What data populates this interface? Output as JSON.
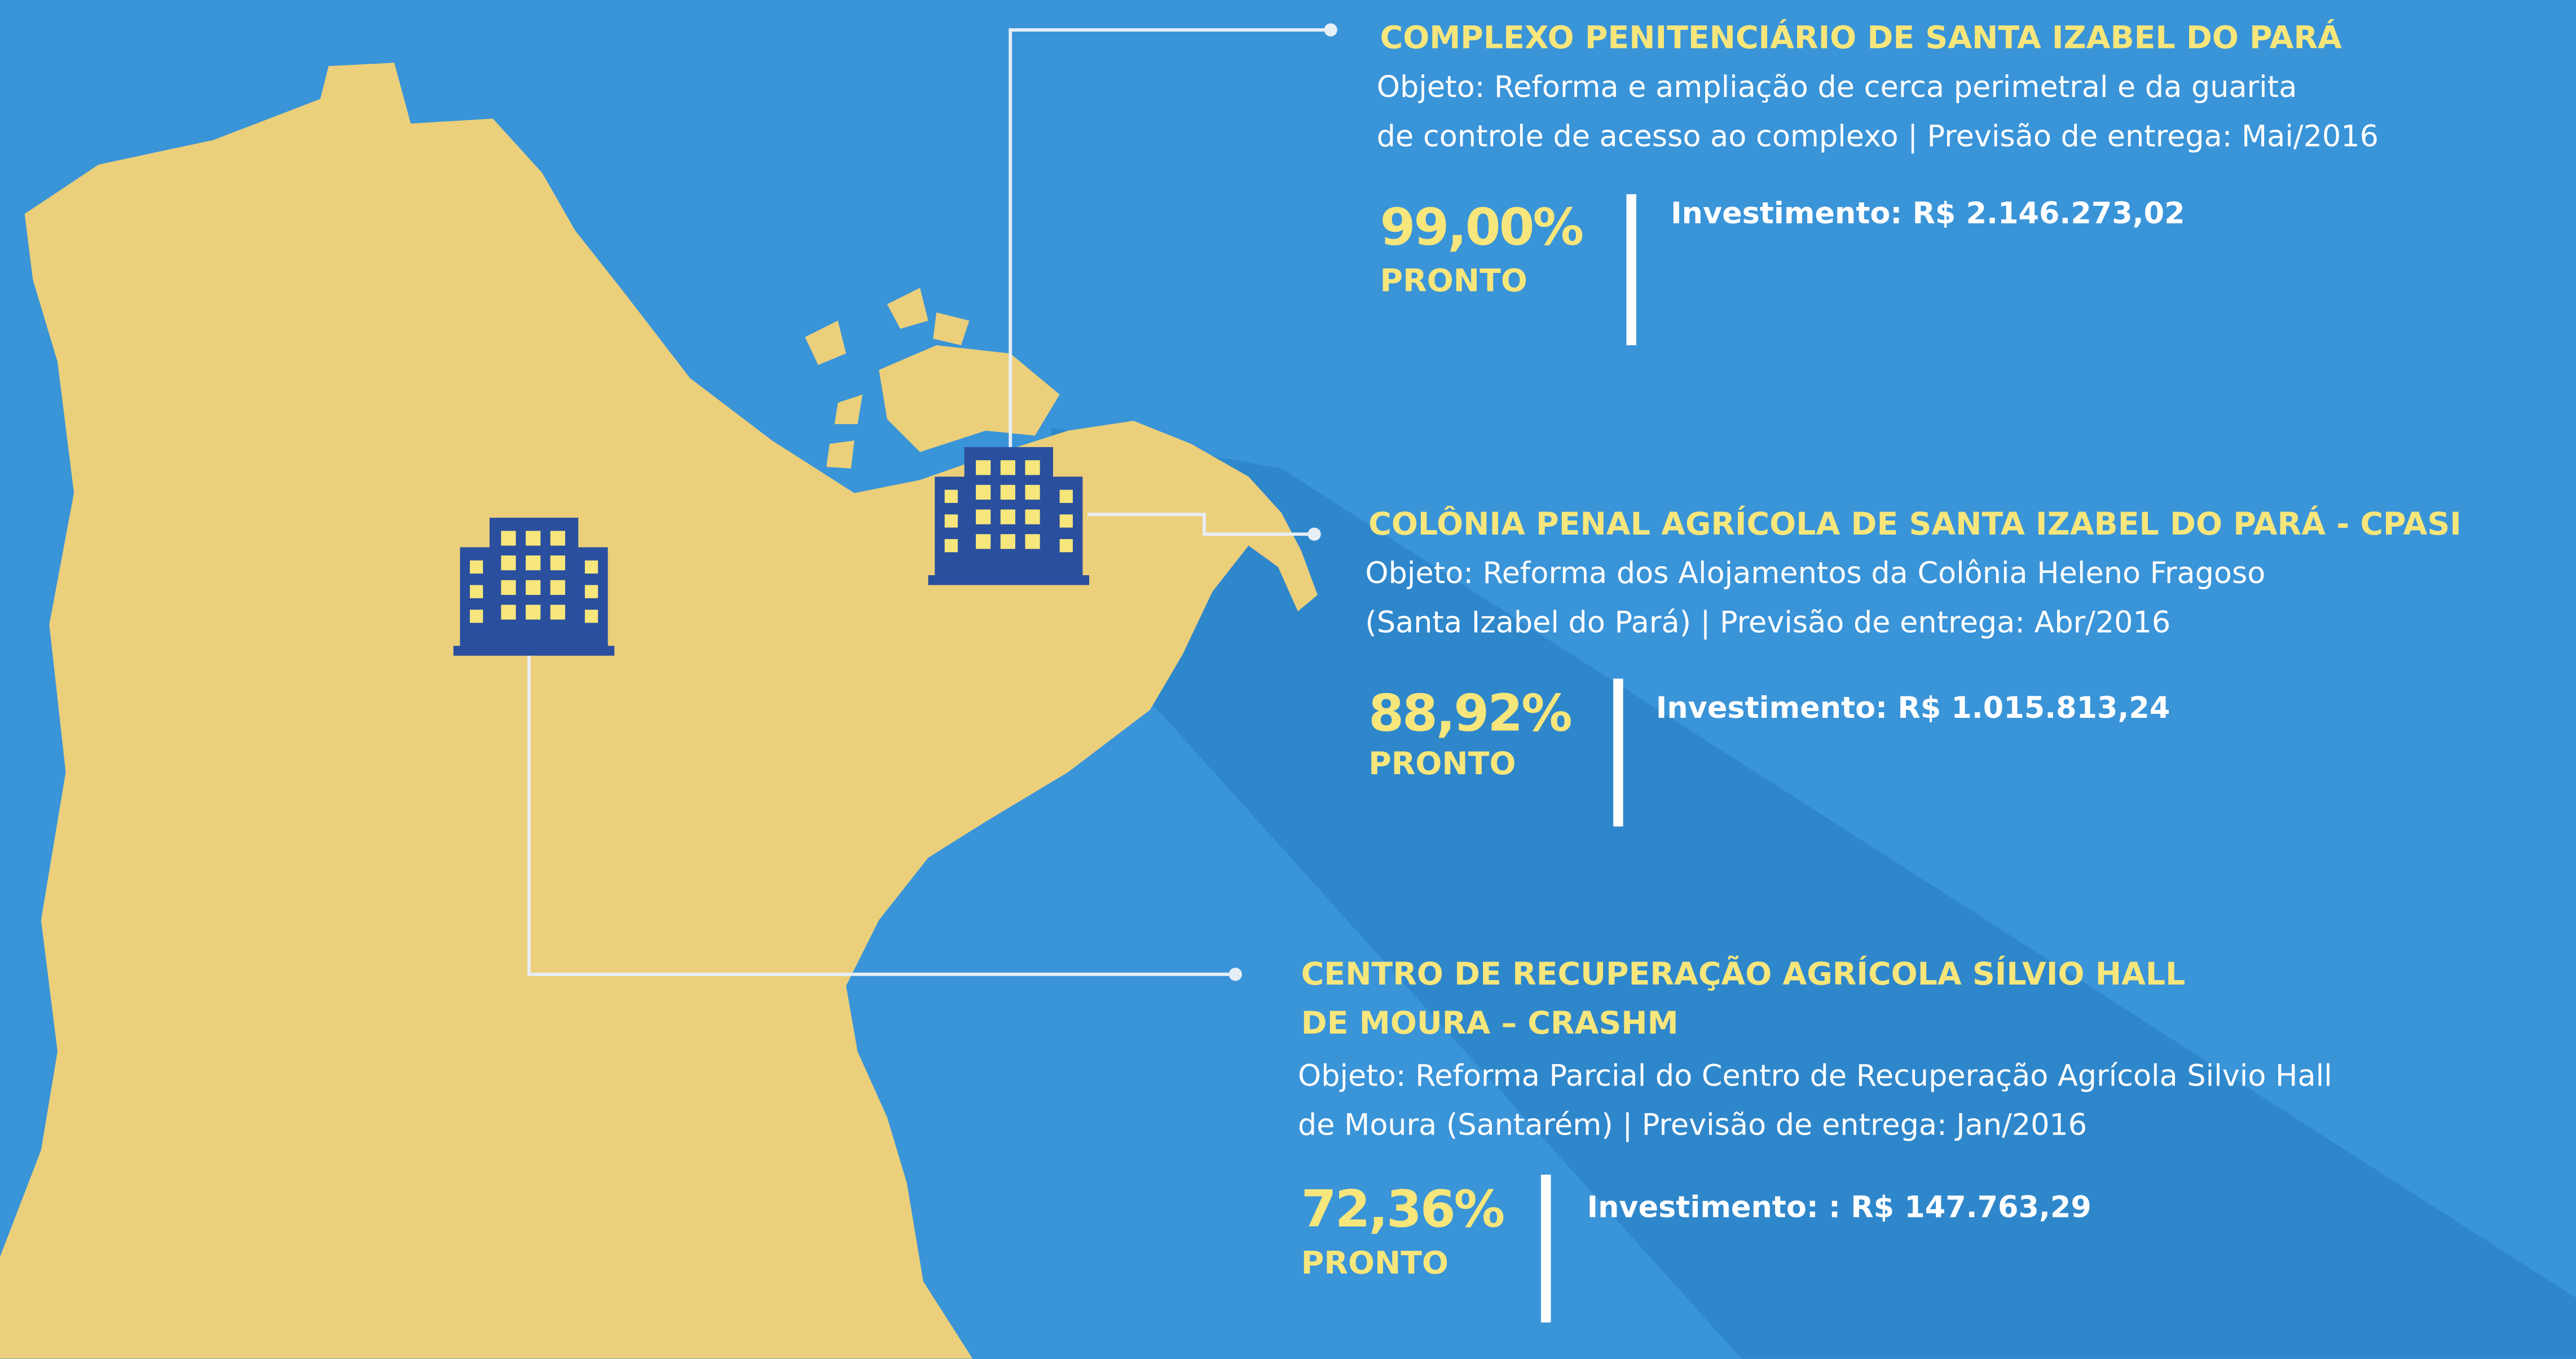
{
  "items": [
    {
      "title": [
        "COMPLEXO PENITENCIÁRIO DE SANTA IZABEL DO PARÁ"
      ],
      "description": [
        "Objeto: Reforma e ampliação de cerca perimetral e da  guarita",
        "de controle de acesso ao complexo  |  Previsão de entrega: Mai/2016"
      ],
      "percent": "99,00%",
      "status": "PRONTO",
      "investment": "Investimento: R$ 2.146.273,02"
    },
    {
      "title": [
        "COLÔNIA PENAL AGRÍCOLA DE SANTA IZABEL DO PARÁ - CPASI"
      ],
      "description": [
        "Objeto: Reforma dos Alojamentos da Colônia Heleno Fragoso",
        "(Santa Izabel do Pará)  |  Previsão de entrega: Abr/2016"
      ],
      "percent": "88,92%",
      "status": "PRONTO",
      "investment": "Investimento: R$ 1.015.813,24"
    },
    {
      "title": [
        "CENTRO DE RECUPERAÇÃO AGRÍCOLA SÍLVIO HALL",
        " DE MOURA – CRASHM"
      ],
      "description": [
        "Objeto: Reforma Parcial do Centro de Recuperação Agrícola Silvio Hall",
        "de Moura (Santarém)  |  Previsão de entrega: Jan/2016"
      ],
      "percent": "72,36%",
      "status": "PRONTO",
      "investment": "Investimento: : R$ 147.763,29"
    }
  ]
}
